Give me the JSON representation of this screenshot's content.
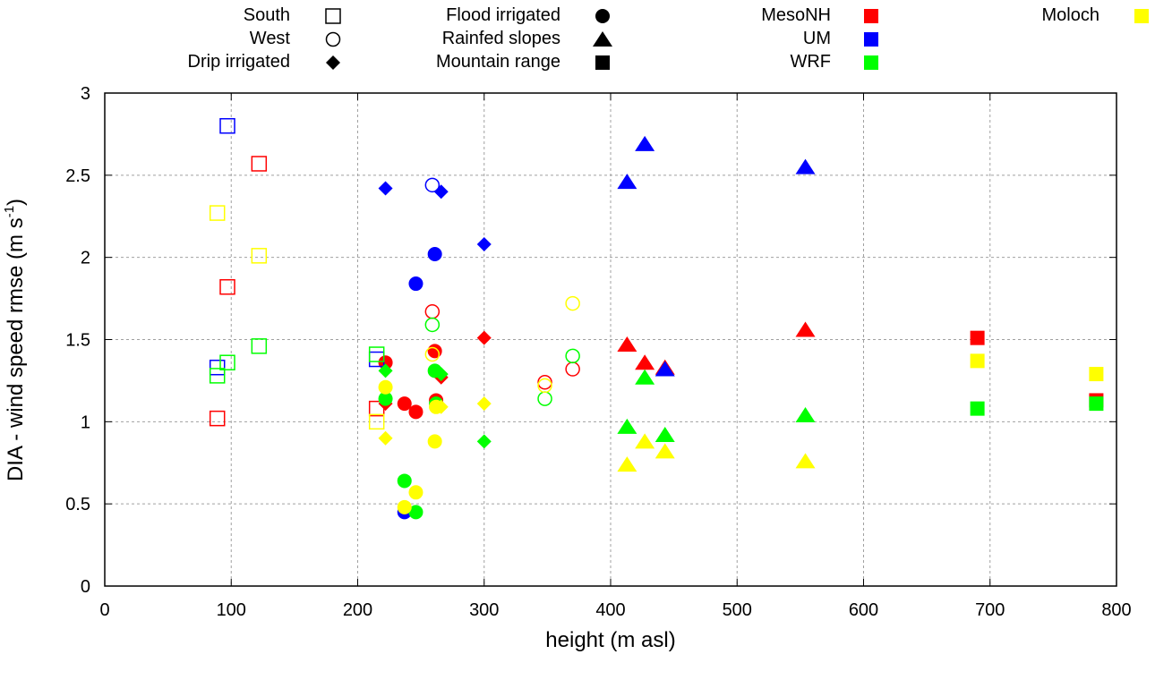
{
  "chart_data": {
    "type": "scatter",
    "title": "",
    "xlabel": "height (m asl)",
    "ylabel_main": "DIA - wind speed rmse (m s",
    "ylabel_sup": "-1",
    "ylabel_close": ")",
    "xlim": [
      0,
      800
    ],
    "ylim": [
      0,
      3
    ],
    "xticks": [
      0,
      100,
      200,
      300,
      400,
      500,
      600,
      700,
      800
    ],
    "yticks": [
      0,
      0.5,
      1,
      1.5,
      2,
      2.5,
      3
    ],
    "ytick_labels": [
      "0",
      "0.5",
      "1",
      "1.5",
      "2",
      "2.5",
      "3"
    ],
    "grid": true,
    "legend_placement": "top",
    "legend_sites": [
      {
        "label": "South",
        "shape": "square-open"
      },
      {
        "label": "West",
        "shape": "circle-open"
      },
      {
        "label": "Drip irrigated",
        "shape": "diamond"
      },
      {
        "label": "Flood irrigated",
        "shape": "circle"
      },
      {
        "label": "Rainfed slopes",
        "shape": "triangle"
      },
      {
        "label": "Mountain range",
        "shape": "square"
      }
    ],
    "legend_models": [
      {
        "label": "MesoNH",
        "color": "#ff0000"
      },
      {
        "label": "UM",
        "color": "#0000ff"
      },
      {
        "label": "WRF",
        "color": "#00ff00"
      },
      {
        "label": "Moloch",
        "color": "#ffff00"
      }
    ],
    "series": [
      {
        "name": "MesoNH",
        "color": "#ff0000",
        "points": [
          {
            "site": "South",
            "shape": "square-open",
            "x": 122,
            "y": 2.57
          },
          {
            "site": "South",
            "shape": "square-open",
            "x": 97,
            "y": 1.82
          },
          {
            "site": "South",
            "shape": "square-open",
            "x": 89,
            "y": 1.02
          },
          {
            "site": "South",
            "shape": "square-open",
            "x": 215,
            "y": 1.08
          },
          {
            "site": "West",
            "shape": "circle-open",
            "x": 259,
            "y": 1.67
          },
          {
            "site": "West",
            "shape": "circle-open",
            "x": 348,
            "y": 1.24
          },
          {
            "site": "West",
            "shape": "circle-open",
            "x": 370,
            "y": 1.32
          },
          {
            "site": "Drip irrigated",
            "shape": "diamond",
            "x": 300,
            "y": 1.51
          },
          {
            "site": "Drip irrigated",
            "shape": "diamond",
            "x": 266,
            "y": 1.27
          },
          {
            "site": "Drip irrigated",
            "shape": "diamond",
            "x": 222,
            "y": 1.11
          },
          {
            "site": "Flood irrigated",
            "shape": "circle",
            "x": 222,
            "y": 1.36
          },
          {
            "site": "Flood irrigated",
            "shape": "circle",
            "x": 261,
            "y": 1.43
          },
          {
            "site": "Flood irrigated",
            "shape": "circle",
            "x": 237,
            "y": 1.11
          },
          {
            "site": "Flood irrigated",
            "shape": "circle",
            "x": 246,
            "y": 1.06
          },
          {
            "site": "Flood irrigated",
            "shape": "circle",
            "x": 262,
            "y": 1.13
          },
          {
            "site": "Rainfed slopes",
            "shape": "triangle",
            "x": 413,
            "y": 1.47
          },
          {
            "site": "Rainfed slopes",
            "shape": "triangle",
            "x": 427,
            "y": 1.36
          },
          {
            "site": "Rainfed slopes",
            "shape": "triangle",
            "x": 443,
            "y": 1.33
          },
          {
            "site": "Rainfed slopes",
            "shape": "triangle",
            "x": 554,
            "y": 1.56
          },
          {
            "site": "Mountain range",
            "shape": "square",
            "x": 690,
            "y": 1.51
          },
          {
            "site": "Mountain range",
            "shape": "square",
            "x": 784,
            "y": 1.13
          }
        ]
      },
      {
        "name": "UM",
        "color": "#0000ff",
        "points": [
          {
            "site": "South",
            "shape": "square-open",
            "x": 97,
            "y": 2.8
          },
          {
            "site": "South",
            "shape": "square-open",
            "x": 89,
            "y": 1.33
          },
          {
            "site": "South",
            "shape": "square-open",
            "x": 215,
            "y": 1.38
          },
          {
            "site": "West",
            "shape": "circle-open",
            "x": 259,
            "y": 2.44
          },
          {
            "site": "Drip irrigated",
            "shape": "diamond",
            "x": 222,
            "y": 2.42
          },
          {
            "site": "Drip irrigated",
            "shape": "diamond",
            "x": 266,
            "y": 2.4
          },
          {
            "site": "Drip irrigated",
            "shape": "diamond",
            "x": 300,
            "y": 2.08
          },
          {
            "site": "Flood irrigated",
            "shape": "circle",
            "x": 261,
            "y": 2.02
          },
          {
            "site": "Flood irrigated",
            "shape": "circle",
            "x": 246,
            "y": 1.84
          },
          {
            "site": "Flood irrigated",
            "shape": "circle",
            "x": 237,
            "y": 0.45
          },
          {
            "site": "Rainfed slopes",
            "shape": "triangle",
            "x": 427,
            "y": 2.69
          },
          {
            "site": "Rainfed slopes",
            "shape": "triangle",
            "x": 413,
            "y": 2.46
          },
          {
            "site": "Rainfed slopes",
            "shape": "triangle",
            "x": 554,
            "y": 2.55
          },
          {
            "site": "Rainfed slopes",
            "shape": "triangle",
            "x": 443,
            "y": 1.32
          }
        ]
      },
      {
        "name": "WRF",
        "color": "#00ff00",
        "points": [
          {
            "site": "South",
            "shape": "square-open",
            "x": 122,
            "y": 1.46
          },
          {
            "site": "South",
            "shape": "square-open",
            "x": 97,
            "y": 1.36
          },
          {
            "site": "South",
            "shape": "square-open",
            "x": 89,
            "y": 1.28
          },
          {
            "site": "South",
            "shape": "square-open",
            "x": 215,
            "y": 1.41
          },
          {
            "site": "West",
            "shape": "circle-open",
            "x": 259,
            "y": 1.59
          },
          {
            "site": "West",
            "shape": "circle-open",
            "x": 370,
            "y": 1.4
          },
          {
            "site": "West",
            "shape": "circle-open",
            "x": 348,
            "y": 1.14
          },
          {
            "site": "Drip irrigated",
            "shape": "diamond",
            "x": 222,
            "y": 1.31
          },
          {
            "site": "Drip irrigated",
            "shape": "diamond",
            "x": 266,
            "y": 1.29
          },
          {
            "site": "Drip irrigated",
            "shape": "diamond",
            "x": 300,
            "y": 0.88
          },
          {
            "site": "Flood irrigated",
            "shape": "circle",
            "x": 261,
            "y": 1.31
          },
          {
            "site": "Flood irrigated",
            "shape": "circle",
            "x": 222,
            "y": 1.14
          },
          {
            "site": "Flood irrigated",
            "shape": "circle",
            "x": 262,
            "y": 1.11
          },
          {
            "site": "Flood irrigated",
            "shape": "circle",
            "x": 237,
            "y": 0.64
          },
          {
            "site": "Flood irrigated",
            "shape": "circle",
            "x": 246,
            "y": 0.45
          },
          {
            "site": "Rainfed slopes",
            "shape": "triangle",
            "x": 427,
            "y": 1.27
          },
          {
            "site": "Rainfed slopes",
            "shape": "triangle",
            "x": 413,
            "y": 0.97
          },
          {
            "site": "Rainfed slopes",
            "shape": "triangle",
            "x": 443,
            "y": 0.92
          },
          {
            "site": "Rainfed slopes",
            "shape": "triangle",
            "x": 554,
            "y": 1.04
          },
          {
            "site": "Mountain range",
            "shape": "square",
            "x": 690,
            "y": 1.08
          },
          {
            "site": "Mountain range",
            "shape": "square",
            "x": 784,
            "y": 1.11
          }
        ]
      },
      {
        "name": "Moloch",
        "color": "#ffff00",
        "points": [
          {
            "site": "South",
            "shape": "square-open",
            "x": 89,
            "y": 2.27
          },
          {
            "site": "South",
            "shape": "square-open",
            "x": 122,
            "y": 2.01
          },
          {
            "site": "South",
            "shape": "square-open",
            "x": 215,
            "y": 1.0
          },
          {
            "site": "West",
            "shape": "circle-open",
            "x": 370,
            "y": 1.72
          },
          {
            "site": "West",
            "shape": "circle-open",
            "x": 259,
            "y": 1.41
          },
          {
            "site": "West",
            "shape": "circle-open",
            "x": 348,
            "y": 1.22
          },
          {
            "site": "Drip irrigated",
            "shape": "diamond",
            "x": 300,
            "y": 1.11
          },
          {
            "site": "Drip irrigated",
            "shape": "diamond",
            "x": 266,
            "y": 1.09
          },
          {
            "site": "Drip irrigated",
            "shape": "diamond",
            "x": 222,
            "y": 0.9
          },
          {
            "site": "Flood irrigated",
            "shape": "circle",
            "x": 222,
            "y": 1.21
          },
          {
            "site": "Flood irrigated",
            "shape": "circle",
            "x": 262,
            "y": 1.09
          },
          {
            "site": "Flood irrigated",
            "shape": "circle",
            "x": 261,
            "y": 0.88
          },
          {
            "site": "Flood irrigated",
            "shape": "circle",
            "x": 246,
            "y": 0.57
          },
          {
            "site": "Flood irrigated",
            "shape": "circle",
            "x": 237,
            "y": 0.48
          },
          {
            "site": "Rainfed slopes",
            "shape": "triangle",
            "x": 427,
            "y": 0.88
          },
          {
            "site": "Rainfed slopes",
            "shape": "triangle",
            "x": 443,
            "y": 0.82
          },
          {
            "site": "Rainfed slopes",
            "shape": "triangle",
            "x": 413,
            "y": 0.74
          },
          {
            "site": "Rainfed slopes",
            "shape": "triangle",
            "x": 554,
            "y": 0.76
          },
          {
            "site": "Mountain range",
            "shape": "square",
            "x": 690,
            "y": 1.37
          },
          {
            "site": "Mountain range",
            "shape": "square",
            "x": 784,
            "y": 1.29
          }
        ]
      }
    ]
  }
}
